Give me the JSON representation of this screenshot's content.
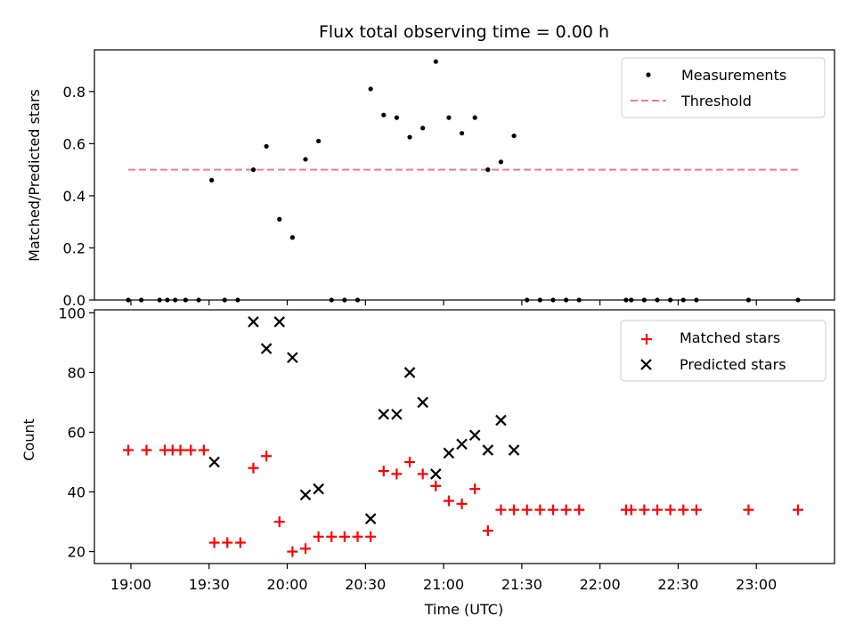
{
  "chart_data": [
    {
      "type": "scatter",
      "title": "Flux total observing time = 0.00 h",
      "xlabel": "",
      "ylabel": "Matched/Predicted stars",
      "ylim": [
        0,
        0.96
      ],
      "yticks": [
        "0.0",
        "0.2",
        "0.4",
        "0.6",
        "0.8"
      ],
      "legend_position": "top-right",
      "series": [
        {
          "name": "Measurements",
          "kind": "points",
          "color": "#000000",
          "x": [
            "18:59",
            "19:04",
            "19:11",
            "19:14",
            "19:17",
            "19:21",
            "19:26",
            "19:31",
            "19:36",
            "19:41",
            "19:47",
            "19:52",
            "19:57",
            "20:02",
            "20:07",
            "20:12",
            "20:17",
            "20:22",
            "20:27",
            "20:32",
            "20:37",
            "20:42",
            "20:47",
            "20:52",
            "20:57",
            "21:02",
            "21:07",
            "21:12",
            "21:17",
            "21:22",
            "21:27",
            "21:32",
            "21:37",
            "21:42",
            "21:47",
            "21:52",
            "22:10",
            "22:12",
            "22:17",
            "22:22",
            "22:27",
            "22:32",
            "22:37",
            "22:57",
            "23:16"
          ],
          "y": [
            0,
            0,
            0,
            0,
            0,
            0,
            0,
            0.46,
            0,
            0,
            0.5,
            0.59,
            0.31,
            0.24,
            0.54,
            0.61,
            0,
            0,
            0,
            0.81,
            0.71,
            0.7,
            0.625,
            0.66,
            0.915,
            0.7,
            0.64,
            0.7,
            0.5,
            0.53,
            0.63,
            0,
            0,
            0,
            0,
            0,
            0,
            0,
            0,
            0,
            0,
            0,
            0,
            0,
            0
          ]
        },
        {
          "name": "Threshold",
          "kind": "dashed-line",
          "color": "#f08080",
          "x": [
            "18:59",
            "23:16"
          ],
          "y": [
            0.5,
            0.5
          ]
        }
      ]
    },
    {
      "type": "scatter",
      "title": "",
      "xlabel": "Time (UTC)",
      "ylabel": "Count",
      "ylim": [
        16,
        101
      ],
      "yticks": [
        "20",
        "40",
        "60",
        "80",
        "100"
      ],
      "xlim": [
        "18:46",
        "23:30"
      ],
      "xticks": [
        "19:00",
        "19:30",
        "20:00",
        "20:30",
        "21:00",
        "21:30",
        "22:00",
        "22:30",
        "23:00"
      ],
      "legend_position": "top-right",
      "series": [
        {
          "name": "Matched stars",
          "marker": "plus",
          "color": "#ff0000",
          "x": [
            "18:59",
            "19:06",
            "19:13",
            "19:16",
            "19:19",
            "19:23",
            "19:28",
            "19:32",
            "19:37",
            "19:42",
            "19:47",
            "19:52",
            "19:57",
            "20:02",
            "20:07",
            "20:12",
            "20:17",
            "20:22",
            "20:27",
            "20:32",
            "20:37",
            "20:42",
            "20:47",
            "20:52",
            "20:57",
            "21:02",
            "21:07",
            "21:12",
            "21:17",
            "21:22",
            "21:27",
            "21:32",
            "21:37",
            "21:42",
            "21:47",
            "21:52",
            "22:10",
            "22:12",
            "22:17",
            "22:22",
            "22:27",
            "22:32",
            "22:37",
            "22:57",
            "23:16"
          ],
          "y": [
            54,
            54,
            54,
            54,
            54,
            54,
            54,
            23,
            23,
            23,
            48,
            52,
            30,
            20,
            21,
            25,
            25,
            25,
            25,
            25,
            47,
            46,
            50,
            46,
            42,
            37,
            36,
            41,
            27,
            34,
            34,
            34,
            34,
            34,
            34,
            34,
            34,
            34,
            34,
            34,
            34,
            34,
            34,
            34,
            34
          ]
        },
        {
          "name": "Predicted stars",
          "marker": "x",
          "color": "#000000",
          "x": [
            "19:32",
            "19:47",
            "19:52",
            "19:57",
            "20:02",
            "20:07",
            "20:12",
            "20:32",
            "20:37",
            "20:42",
            "20:47",
            "20:52",
            "20:57",
            "21:02",
            "21:07",
            "21:12",
            "21:17",
            "21:22",
            "21:27"
          ],
          "y": [
            50,
            97,
            88,
            97,
            85,
            39,
            41,
            31,
            66,
            66,
            80,
            70,
            46,
            53,
            56,
            59,
            54,
            64,
            54
          ]
        }
      ]
    }
  ]
}
